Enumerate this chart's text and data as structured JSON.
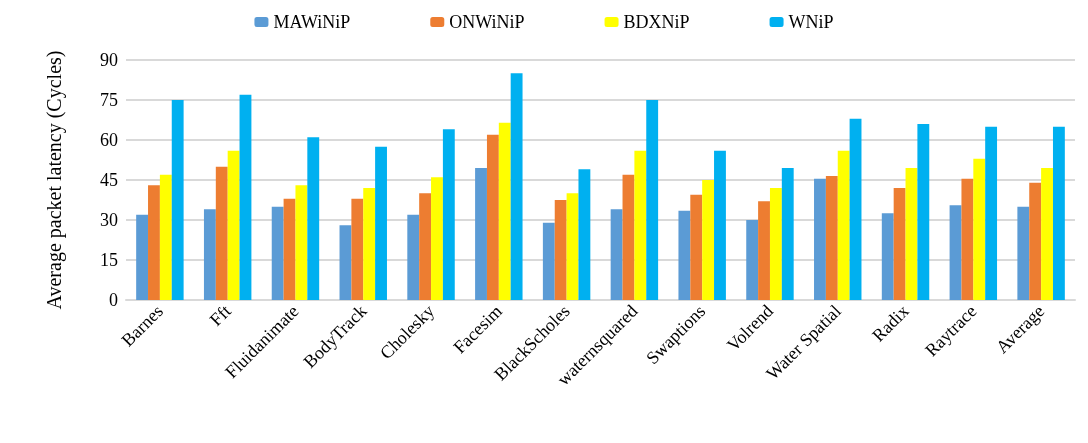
{
  "chart_data": {
    "type": "bar",
    "ylabel": "Average packet latency (Cycles)",
    "categories": [
      "Barnes",
      "Fft",
      "Fluidanimate",
      "BodyTrack",
      "Cholesky",
      "Facesim",
      "BlackScholes",
      "waternsquared",
      "Swaptions",
      "Volrend",
      "Water Spatial",
      "Radix",
      "Raytrace",
      "Average"
    ],
    "series": [
      {
        "name": "MAWiNiP",
        "color": "#5b9bd5",
        "values": [
          32,
          34,
          35,
          28,
          32,
          49.5,
          29,
          34,
          33.5,
          30,
          45.5,
          32.5,
          35.5,
          35
        ]
      },
      {
        "name": "ONWiNiP",
        "color": "#ed7d31",
        "values": [
          43,
          50,
          38,
          38,
          40,
          62,
          37.5,
          47,
          39.5,
          37,
          46.5,
          42,
          45.5,
          44
        ]
      },
      {
        "name": "BDXNiP",
        "color": "#ffff00",
        "values": [
          47,
          56,
          43,
          42,
          46,
          66.5,
          40,
          56,
          45,
          42,
          56,
          49.5,
          53,
          49.5
        ]
      },
      {
        "name": "WNiP",
        "color": "#00b0f0",
        "values": [
          75,
          77,
          61,
          57.5,
          64,
          85,
          49,
          75,
          56,
          49.5,
          68,
          66,
          65,
          65
        ]
      }
    ],
    "ylim": [
      0,
      90
    ],
    "yticks": [
      0,
      15,
      30,
      45,
      60,
      75,
      90
    ],
    "grid": "y",
    "legend": "top"
  }
}
